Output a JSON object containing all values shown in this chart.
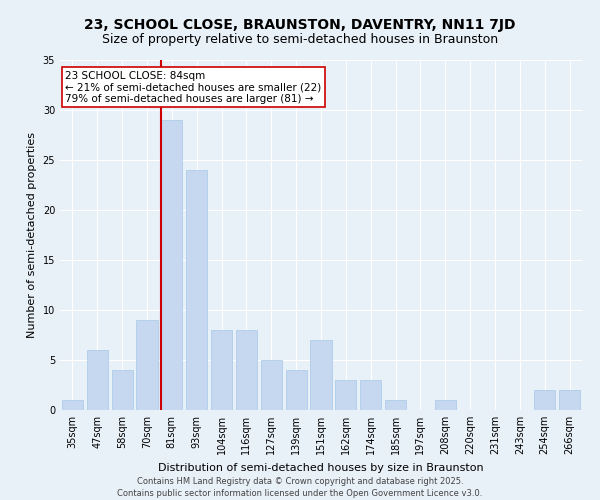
{
  "title": "23, SCHOOL CLOSE, BRAUNSTON, DAVENTRY, NN11 7JD",
  "subtitle": "Size of property relative to semi-detached houses in Braunston",
  "xlabel": "Distribution of semi-detached houses by size in Braunston",
  "ylabel": "Number of semi-detached properties",
  "categories": [
    "35sqm",
    "47sqm",
    "58sqm",
    "70sqm",
    "81sqm",
    "93sqm",
    "104sqm",
    "116sqm",
    "127sqm",
    "139sqm",
    "151sqm",
    "162sqm",
    "174sqm",
    "185sqm",
    "197sqm",
    "208sqm",
    "220sqm",
    "231sqm",
    "243sqm",
    "254sqm",
    "266sqm"
  ],
  "values": [
    1,
    6,
    4,
    9,
    29,
    24,
    8,
    8,
    5,
    4,
    7,
    3,
    3,
    1,
    0,
    1,
    0,
    0,
    0,
    2,
    2
  ],
  "bar_color": "#c5d8f0",
  "bar_edgecolor": "#a8c8e8",
  "highlight_bar_index": 4,
  "red_line_color": "#cc0000",
  "annotation_text": "23 SCHOOL CLOSE: 84sqm\n← 21% of semi-detached houses are smaller (22)\n79% of semi-detached houses are larger (81) →",
  "annotation_box_color": "#ffffff",
  "annotation_box_edgecolor": "#cc0000",
  "ylim": [
    0,
    35
  ],
  "yticks": [
    0,
    5,
    10,
    15,
    20,
    25,
    30,
    35
  ],
  "footer": "Contains HM Land Registry data © Crown copyright and database right 2025.\nContains public sector information licensed under the Open Government Licence v3.0.",
  "background_color": "#e8f0f8",
  "plot_background": "#e8f0f8",
  "grid_color": "#ffffff",
  "title_fontsize": 10,
  "subtitle_fontsize": 9,
  "axis_fontsize": 8,
  "tick_fontsize": 7,
  "footer_fontsize": 6,
  "annotation_fontsize": 7.5
}
